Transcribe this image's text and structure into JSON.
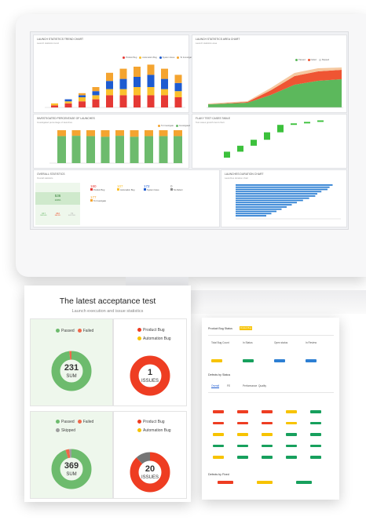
{
  "acceptance": {
    "title": "The latest acceptance test",
    "subtitle": "Launch execution and issue statistics",
    "card1": {
      "legend": [
        {
          "label": "Passed",
          "color": "#6dbb6d"
        },
        {
          "label": "Failed",
          "color": "#f0674a"
        }
      ],
      "donut": {
        "value": "231",
        "label": "SUM",
        "segments": [
          {
            "value": 0.98,
            "color": "#6dbb6d"
          },
          {
            "value": 0.02,
            "color": "#f0674a"
          }
        ]
      }
    },
    "card2": {
      "legend": [
        {
          "label": "Product Bug",
          "color": "#ee3d22"
        },
        {
          "label": "Automation Bug",
          "color": "#f7c300"
        }
      ],
      "donut": {
        "value": "1",
        "label": "ISSUES",
        "segments": [
          {
            "value": 1.0,
            "color": "#ee3d22"
          }
        ]
      }
    },
    "card3": {
      "legend": [
        {
          "label": "Passed",
          "color": "#6dbb6d"
        },
        {
          "label": "Failed",
          "color": "#f0674a"
        },
        {
          "label": "Skipped",
          "color": "#9e9e9e"
        }
      ],
      "donut": {
        "value": "369",
        "label": "SUM",
        "segments": [
          {
            "value": 0.95,
            "color": "#6dbb6d"
          },
          {
            "value": 0.03,
            "color": "#f0674a"
          },
          {
            "value": 0.02,
            "color": "#9e9e9e"
          }
        ]
      }
    },
    "card4": {
      "legend": [
        {
          "label": "Product Bug",
          "color": "#ee3d22"
        },
        {
          "label": "Automation Bug",
          "color": "#f7c300"
        }
      ],
      "donut": {
        "value": "20",
        "label": "ISSUES",
        "segments": [
          {
            "value": 0.88,
            "color": "#ee3d22"
          },
          {
            "value": 0.12,
            "color": "#757575"
          }
        ]
      }
    }
  },
  "dashboard": {
    "widgets": [
      {
        "title": "LAUNCH STATISTICS TREND CHART",
        "sub": "Launch statistics trend"
      },
      {
        "title": "LAUNCH STATISTICS AREA CHART",
        "sub": "Launch statistics area"
      },
      {
        "title": "INVESTIGATED PERCENTAGE OF LAUNCHES",
        "sub": "Investigated percentage of launches"
      },
      {
        "title": "FLAKY TEST CASES TABLE",
        "sub": "Test cases growth trend chart"
      },
      {
        "title": "OVERALL STATISTICS",
        "sub": "Overall statistics"
      },
      {
        "title": "LAUNCHES DURATION CHART",
        "sub": "Launches duration chart"
      }
    ],
    "trend_legend": [
      {
        "label": "Product Bug",
        "color": "#e53935"
      },
      {
        "label": "Automation Bug",
        "color": "#fbc02d"
      },
      {
        "label": "System Issue",
        "color": "#1e5bd0"
      },
      {
        "label": "To Investigate",
        "color": "#f4a430"
      }
    ],
    "area_legend": [
      {
        "label": "Passed",
        "color": "#5cb85c"
      },
      {
        "label": "Failed",
        "color": "#ef5533"
      },
      {
        "label": "Skipped",
        "color": "#d9d9d9"
      }
    ],
    "inv_legend": [
      {
        "label": "To Investigate",
        "color": "#f4a430"
      },
      {
        "label": "Investigated",
        "color": "#6dbb6d"
      }
    ],
    "trend_stacks": [
      [
        1,
        1,
        0,
        0
      ],
      [
        2,
        1,
        1,
        0
      ],
      [
        3,
        2,
        1,
        1
      ],
      [
        4,
        2,
        2,
        2
      ],
      [
        6,
        3,
        4,
        4
      ],
      [
        6,
        3,
        5,
        5
      ],
      [
        6,
        4,
        5,
        5
      ],
      [
        6,
        4,
        6,
        5
      ],
      [
        6,
        3,
        5,
        5
      ],
      [
        5,
        3,
        4,
        4
      ]
    ],
    "inv_values": [
      0.82,
      0.83,
      0.82,
      0.8,
      0.83,
      0.8,
      0.82,
      0.82,
      0.82
    ],
    "waterfall": [
      [
        0,
        4
      ],
      [
        4,
        8
      ],
      [
        8,
        12
      ],
      [
        12,
        17
      ],
      [
        17,
        22
      ],
      [
        22,
        23
      ],
      [
        23,
        24
      ],
      [
        24,
        25
      ]
    ],
    "duration": [
      0.95,
      0.92,
      0.9,
      0.84,
      0.8,
      0.78,
      0.72,
      0.66,
      0.6,
      0.55,
      0.5,
      0.45,
      0.4,
      0.35,
      0.3
    ],
    "overall": {
      "big_value": "536",
      "big_pct": "100%",
      "stats": [
        {
          "value": "347",
          "label": "PASSED",
          "color": "#6dbb6d"
        },
        {
          "value": "462",
          "label": "FAILED",
          "color": "#ef5533"
        },
        {
          "value": "74",
          "label": "SKIPPED",
          "color": "#aaaaaa"
        }
      ],
      "defects": [
        {
          "value": "180",
          "label": "Product Bug",
          "color": "#e53935"
        },
        {
          "value": "107",
          "label": "Automation Bug",
          "color": "#fbc02d"
        },
        {
          "value": "172",
          "label": "System Issue",
          "color": "#1e5bd0"
        },
        {
          "value": "0",
          "label": "No Defect",
          "color": "#888888"
        },
        {
          "value": "177",
          "label": "To Investigate",
          "color": "#f4a430"
        }
      ]
    }
  },
  "table_panel": {
    "header": "Product Bug Status",
    "tag": "Product Bug",
    "columns": [
      "Total Bug Count",
      "In Status",
      "Open status",
      "In Review"
    ],
    "section1": "Defects by Status",
    "tabs": [
      "Overall",
      "FE",
      "Performance",
      "Quality"
    ],
    "section2": "Defects by Fixed",
    "pill_rows": [
      [
        "#ee3d22",
        "#ee3d22",
        "#ee3d22",
        "#f7c300",
        "#17a05d"
      ],
      [
        "#ee3d22",
        "#ee3d22",
        "#ee3d22",
        "#f7c300",
        "#17a05d"
      ],
      [
        "#f7c300",
        "#f7c300",
        "#f7c300",
        "#17a05d",
        "#17a05d"
      ],
      [
        "#17a05d",
        "#17a05d",
        "#17a05d",
        "#17a05d",
        "#17a05d"
      ],
      [
        "#f7c300",
        "#17a05d",
        "#17a05d",
        "#17a05d",
        "#17a05d"
      ]
    ],
    "bottom_pills": [
      "#ee3d22",
      "#f7c300",
      "#17a05d"
    ]
  }
}
